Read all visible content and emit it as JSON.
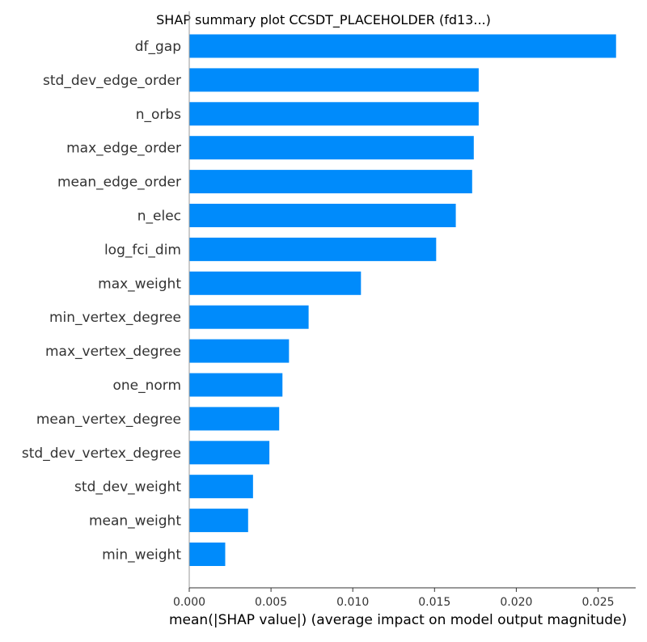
{
  "chart_data": {
    "type": "bar",
    "orientation": "horizontal",
    "title": "SHAP summary plot CCSDT_PLACEHOLDER (fd13...)",
    "xlabel": "mean(|SHAP value|) (average impact on model output magnitude)",
    "ylabel": "",
    "xlim": [
      0.0,
      0.0273
    ],
    "xticks": [
      "0.000",
      "0.005",
      "0.010",
      "0.015",
      "0.020",
      "0.025"
    ],
    "grid": false,
    "categories": [
      "df_gap",
      "std_dev_edge_order",
      "n_orbs",
      "max_edge_order",
      "mean_edge_order",
      "n_elec",
      "log_fci_dim",
      "max_weight",
      "min_vertex_degree",
      "max_vertex_degree",
      "one_norm",
      "mean_vertex_degree",
      "std_dev_vertex_degree",
      "std_dev_weight",
      "mean_weight",
      "min_weight"
    ],
    "values": [
      0.0261,
      0.0177,
      0.0177,
      0.0174,
      0.0173,
      0.0163,
      0.0151,
      0.0105,
      0.0073,
      0.0061,
      0.0057,
      0.0055,
      0.0049,
      0.0039,
      0.0036,
      0.0022
    ],
    "colors": {
      "bar": "#008bfb",
      "axis": "#333333",
      "text": "#333333",
      "title": "#000000"
    }
  }
}
